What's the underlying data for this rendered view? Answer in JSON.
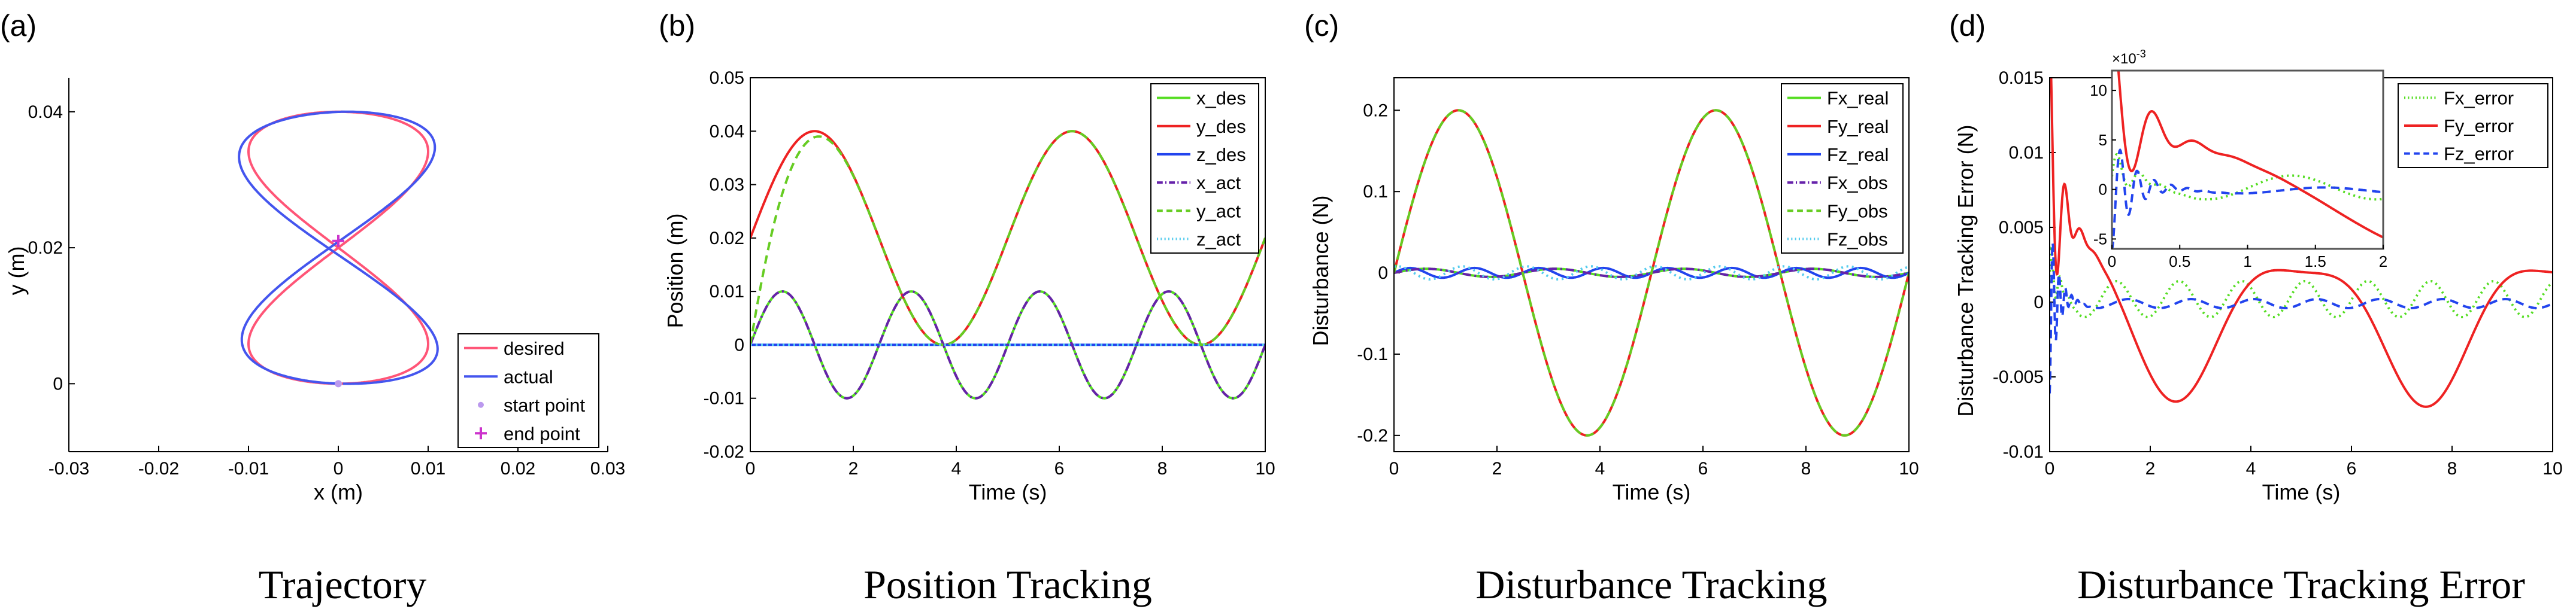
{
  "chart_data": [
    {
      "panel_label": "(a)",
      "caption": "Trajectory",
      "type": "line",
      "xlabel": "x (m)",
      "ylabel": "y (m)",
      "xlim": [
        -0.03,
        0.03
      ],
      "ylim": [
        -0.01,
        0.045
      ],
      "xticks": [
        -0.03,
        -0.02,
        -0.01,
        0,
        0.01,
        0.02,
        0.03
      ],
      "xtick_labels": [
        "-0.03",
        "-0.02",
        "-0.01",
        "0",
        "0.01",
        "0.02",
        "0.03"
      ],
      "yticks": [
        0,
        0.02,
        0.04
      ],
      "ytick_labels": [
        "0",
        "0.02",
        "0.04"
      ],
      "grid": false,
      "legend_position": "bottom-right",
      "series": [
        {
          "name": "desired",
          "color": "#ff5577",
          "kind": "figure-eight",
          "amp_x": 0.01,
          "amp_y": 0.02,
          "center_y": 0.02
        },
        {
          "name": "actual",
          "color": "#4455ee",
          "kind": "figure-eight",
          "amp_x": 0.01,
          "amp_y": 0.02,
          "center_y": 0.02
        },
        {
          "name": "start point",
          "color": "#bb99ee",
          "kind": "marker-dot",
          "x": [
            0
          ],
          "y": [
            0
          ]
        },
        {
          "name": "end point",
          "color": "#cc33cc",
          "kind": "marker-plus",
          "x": [
            0
          ],
          "y": [
            0.021
          ]
        }
      ]
    },
    {
      "panel_label": "(b)",
      "caption": "Position Tracking",
      "type": "line",
      "xlabel": "Time (s)",
      "ylabel": "Position (m)",
      "xlim": [
        0,
        10
      ],
      "ylim": [
        -0.02,
        0.05
      ],
      "xticks": [
        0,
        2,
        4,
        6,
        8,
        10
      ],
      "xtick_labels": [
        "0",
        "2",
        "4",
        "6",
        "8",
        "10"
      ],
      "yticks": [
        -0.02,
        -0.01,
        0,
        0.01,
        0.02,
        0.03,
        0.04,
        0.05
      ],
      "ytick_labels": [
        "-0.02",
        "-0.01",
        "0",
        "0.01",
        "0.02",
        "0.03",
        "0.04",
        "0.05"
      ],
      "grid": false,
      "legend_position": "top-right",
      "series": [
        {
          "name": "x_des",
          "color": "#55dd22",
          "dash": "solid",
          "kind": "sine",
          "amp": 0.01,
          "offset": 0,
          "freq": 0.4,
          "phase": 0
        },
        {
          "name": "y_des",
          "color": "#ee2222",
          "dash": "solid",
          "kind": "sine",
          "amp": 0.02,
          "offset": 0.02,
          "freq": 0.2,
          "phase": 0
        },
        {
          "name": "z_des",
          "color": "#2244ee",
          "dash": "solid",
          "kind": "const",
          "value": 0
        },
        {
          "name": "x_act",
          "color": "#6622aa",
          "dash": "dashdot",
          "kind": "sine",
          "amp": 0.01,
          "offset": 0,
          "freq": 0.4,
          "phase": 0
        },
        {
          "name": "y_act",
          "color": "#66cc22",
          "dash": "dashed",
          "kind": "sine-from-zero",
          "amp": 0.02,
          "offset": 0.02,
          "freq": 0.2,
          "phase": 0,
          "tau": 0.35
        },
        {
          "name": "z_act",
          "color": "#55ccee",
          "dash": "dotted",
          "kind": "const",
          "value": 0
        }
      ]
    },
    {
      "panel_label": "(c)",
      "caption": "Disturbance Tracking",
      "type": "line",
      "xlabel": "Time (s)",
      "ylabel": "Disturbance (N)",
      "xlim": [
        0,
        10
      ],
      "ylim": [
        -0.22,
        0.24
      ],
      "xticks": [
        0,
        2,
        4,
        6,
        8,
        10
      ],
      "xtick_labels": [
        "0",
        "2",
        "4",
        "6",
        "8",
        "10"
      ],
      "yticks": [
        -0.2,
        -0.1,
        0,
        0.1,
        0.2
      ],
      "ytick_labels": [
        "-0.2",
        "-0.1",
        "0",
        "0.1",
        "0.2"
      ],
      "grid": false,
      "legend_position": "top-right",
      "series": [
        {
          "name": "Fx_real",
          "color": "#55dd22",
          "dash": "solid",
          "kind": "sine",
          "amp": 0.005,
          "offset": 0,
          "freq": 0.4,
          "phase": 0
        },
        {
          "name": "Fy_real",
          "color": "#ee2222",
          "dash": "solid",
          "kind": "sine",
          "amp": 0.2,
          "offset": 0,
          "freq": 0.2,
          "phase": 0
        },
        {
          "name": "Fz_real",
          "color": "#2244ee",
          "dash": "solid",
          "kind": "sine",
          "amp": 0.006,
          "offset": 0,
          "freq": 0.8,
          "phase": 0
        },
        {
          "name": "Fx_obs",
          "color": "#6622aa",
          "dash": "dashdot",
          "kind": "sine",
          "amp": 0.005,
          "offset": 0,
          "freq": 0.4,
          "phase": 0
        },
        {
          "name": "Fy_obs",
          "color": "#66cc22",
          "dash": "dashed",
          "kind": "sine",
          "amp": 0.2,
          "offset": 0,
          "freq": 0.2,
          "phase": 0
        },
        {
          "name": "Fz_obs",
          "color": "#55ccee",
          "dash": "dotted",
          "kind": "sine",
          "amp": 0.008,
          "offset": 0,
          "freq": 0.8,
          "phase": 1.2
        }
      ]
    },
    {
      "panel_label": "(d)",
      "caption": "Disturbance Tracking Error",
      "type": "line",
      "xlabel": "Time (s)",
      "ylabel": "Disturbance Tracking Error (N)",
      "xlim": [
        0,
        10
      ],
      "ylim": [
        -0.01,
        0.015
      ],
      "xticks": [
        0,
        2,
        4,
        6,
        8,
        10
      ],
      "xtick_labels": [
        "0",
        "2",
        "4",
        "6",
        "8",
        "10"
      ],
      "yticks": [
        -0.01,
        -0.005,
        0,
        0.005,
        0.01,
        0.015
      ],
      "ytick_labels": [
        "-0.01",
        "-0.005",
        "0",
        "0.005",
        "0.01",
        "0.015"
      ],
      "grid": false,
      "legend_position": "top-right",
      "series": [
        {
          "name": "Fx_error",
          "color": "#55dd22",
          "dash": "dotted",
          "kind": "error-x"
        },
        {
          "name": "Fy_error",
          "color": "#ee2222",
          "dash": "solid",
          "kind": "error-y"
        },
        {
          "name": "Fz_error",
          "color": "#2244ee",
          "dash": "dashed",
          "kind": "error-z"
        }
      ],
      "inset": {
        "xlim": [
          0,
          2
        ],
        "ylim": [
          -0.006,
          0.012
        ],
        "xticks": [
          0,
          0.5,
          1,
          1.5,
          2
        ],
        "xtick_labels": [
          "0",
          "0.5",
          "1",
          "1.5",
          "2"
        ],
        "yticks": [
          -0.005,
          0,
          0.005,
          0.01
        ],
        "ytick_labels": [
          "-5",
          "0",
          "5",
          "10"
        ],
        "exponent_label": "×10",
        "exponent_power": "-3"
      }
    }
  ]
}
